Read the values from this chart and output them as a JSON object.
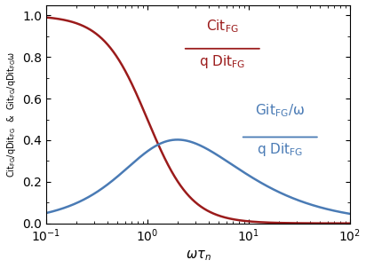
{
  "xlim": [
    0.1,
    100
  ],
  "ylim": [
    0.0,
    1.05
  ],
  "red_color": "#9B1B1B",
  "blue_color": "#4A7BB5",
  "tick_fontsize": 10,
  "label_fontsize": 10.5,
  "annotation_fontsize": 11
}
